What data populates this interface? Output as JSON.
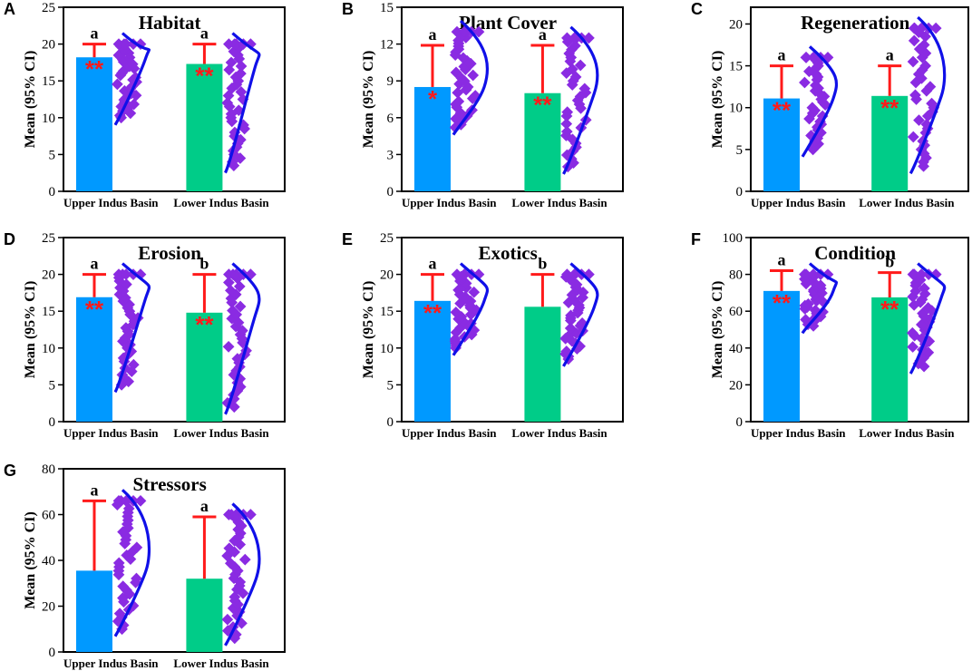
{
  "colors": {
    "upper_bar": "#0099ff",
    "lower_bar": "#00cc88",
    "error_bar": "#ff1a1a",
    "points": "#8a2be2",
    "distribution": "#1010e8"
  },
  "chart_data": [
    {
      "panel": "A",
      "title": "Habitat",
      "type": "bar",
      "ylabel": "Mean (95% CI)",
      "ylim": [
        0,
        25
      ],
      "yticks": [
        "0",
        "5",
        "10",
        "15",
        "20",
        "25"
      ],
      "categories": [
        "Upper Indus Basin",
        "Lower Indus Basin"
      ],
      "values": [
        18.2,
        17.3
      ],
      "ci_upper": [
        20,
        20
      ],
      "sig_letters": [
        "a",
        "a"
      ],
      "stars": [
        "**",
        "**"
      ],
      "point_range": [
        [
          10,
          20
        ],
        [
          3.5,
          20
        ]
      ]
    },
    {
      "panel": "B",
      "title": "Plant Cover",
      "type": "bar",
      "ylabel": "Mean (95% CI)",
      "ylim": [
        0,
        15
      ],
      "yticks": [
        "0",
        "3",
        "6",
        "9",
        "12",
        "15"
      ],
      "categories": [
        "Upper Indus Basin",
        "Lower Indus Basin"
      ],
      "values": [
        8.5,
        8.0
      ],
      "ci_upper": [
        11.9,
        11.9
      ],
      "sig_letters": [
        "a",
        "a"
      ],
      "stars": [
        "*",
        "**"
      ],
      "point_range": [
        [
          5.2,
          13
        ],
        [
          2,
          12.5
        ]
      ]
    },
    {
      "panel": "C",
      "title": "Regeneration",
      "type": "bar",
      "ylabel": "Mean (95% CI)",
      "ylim": [
        0,
        22
      ],
      "yticks": [
        "0",
        "5",
        "10",
        "15",
        "20"
      ],
      "categories": [
        "Upper Indus Basin",
        "Lower Indus Basin"
      ],
      "values": [
        11.1,
        11.4
      ],
      "ci_upper": [
        15,
        15
      ],
      "sig_letters": [
        "a",
        "a"
      ],
      "stars": [
        "**",
        "**"
      ],
      "point_range": [
        [
          5,
          16
        ],
        [
          3,
          19.5
        ]
      ]
    },
    {
      "panel": "D",
      "title": "Erosion",
      "type": "bar",
      "ylabel": "Mean (95% CI)",
      "ylim": [
        0,
        25
      ],
      "yticks": [
        "0",
        "5",
        "10",
        "15",
        "20",
        "25"
      ],
      "categories": [
        "Upper Indus Basin",
        "Lower Indus Basin"
      ],
      "values": [
        16.9,
        14.8
      ],
      "ci_upper": [
        20,
        20
      ],
      "sig_letters": [
        "a",
        "b"
      ],
      "stars": [
        "**",
        "**"
      ],
      "point_range": [
        [
          5,
          20
        ],
        [
          2,
          20
        ]
      ]
    },
    {
      "panel": "E",
      "title": "Exotics",
      "type": "bar",
      "ylabel": "Mean (95% CI)",
      "ylim": [
        0,
        25
      ],
      "yticks": [
        "0",
        "5",
        "10",
        "15",
        "20",
        "25"
      ],
      "categories": [
        "Upper Indus Basin",
        "Lower Indus Basin"
      ],
      "values": [
        16.4,
        15.6
      ],
      "ci_upper": [
        20,
        20
      ],
      "sig_letters": [
        "a",
        "b"
      ],
      "stars": [
        "**",
        ""
      ],
      "point_range": [
        [
          10,
          20
        ],
        [
          8.5,
          20
        ]
      ]
    },
    {
      "panel": "F",
      "title": "Condition",
      "type": "bar",
      "ylabel": "Mean (95% CI)",
      "ylim": [
        0,
        100
      ],
      "yticks": [
        "0",
        "20",
        "40",
        "60",
        "80",
        "100"
      ],
      "categories": [
        "Upper Indus Basin",
        "Lower Indus Basin"
      ],
      "values": [
        71,
        67.5
      ],
      "ci_upper": [
        82,
        81
      ],
      "sig_letters": [
        "a",
        "b"
      ],
      "stars": [
        "**",
        "**"
      ],
      "point_range": [
        [
          52,
          80
        ],
        [
          30,
          80
        ]
      ]
    },
    {
      "panel": "G",
      "title": "Stressors",
      "type": "bar",
      "ylabel": "Mean (95% CI)",
      "ylim": [
        0,
        80
      ],
      "yticks": [
        "0",
        "20",
        "40",
        "60",
        "80"
      ],
      "categories": [
        "Upper Indus Basin",
        "Lower Indus Basin"
      ],
      "values": [
        35.5,
        32
      ],
      "ci_upper": [
        66,
        59
      ],
      "sig_letters": [
        "a",
        "a"
      ],
      "stars": [
        "",
        ""
      ],
      "point_range": [
        [
          10,
          66
        ],
        [
          6,
          60
        ]
      ]
    }
  ]
}
